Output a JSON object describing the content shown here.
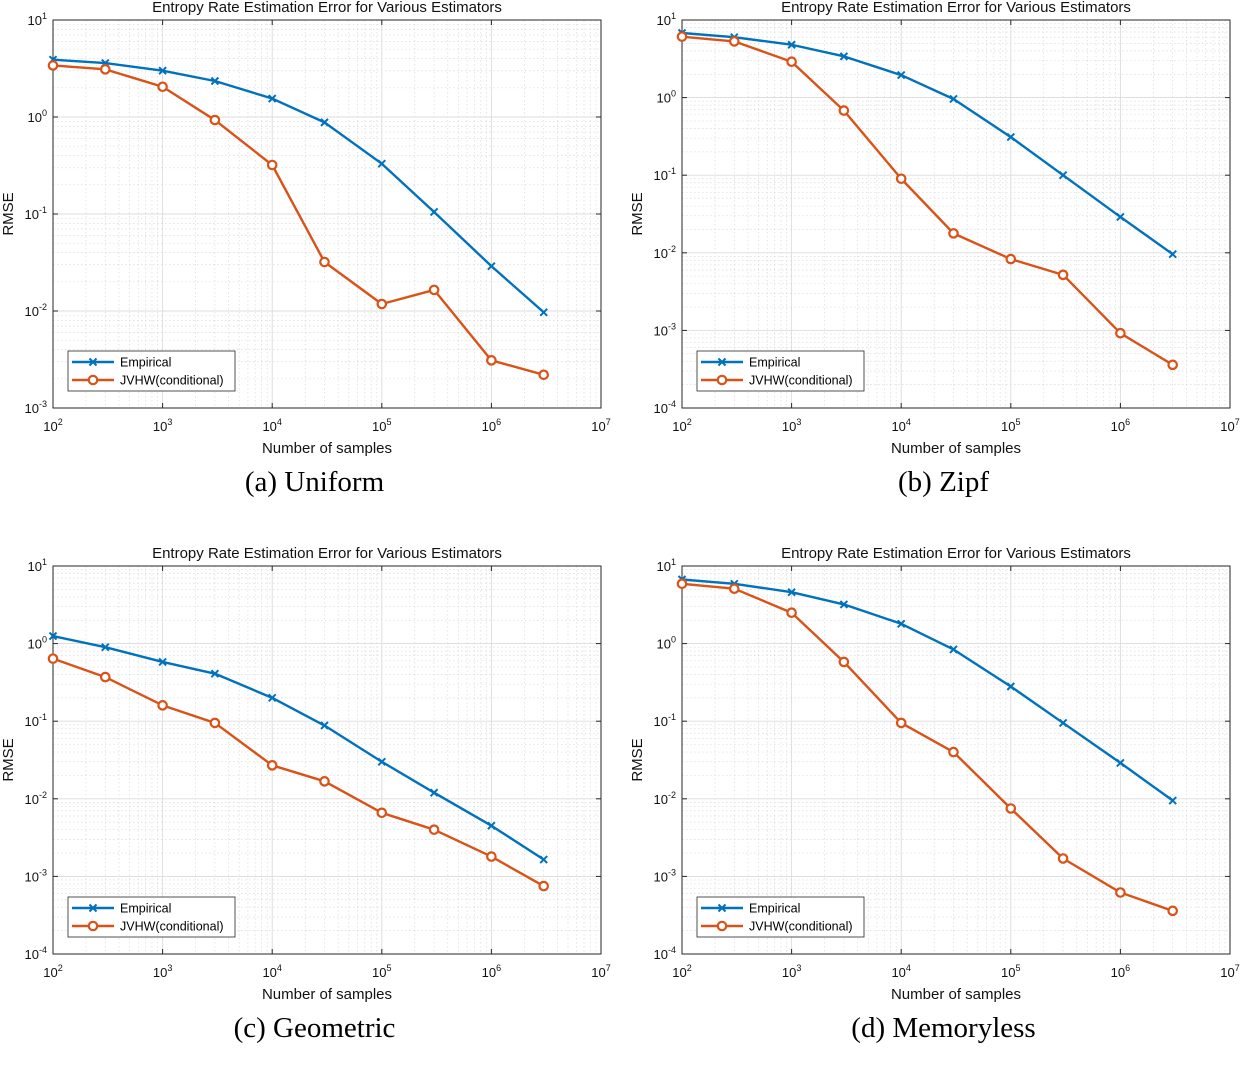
{
  "captions": [
    "(a)  Uniform",
    "(b)  Zipf",
    "(c)  Geometric",
    "(d)  Memoryless"
  ],
  "colors": {
    "empirical": "#0072BD",
    "jvhw": "#D95319"
  },
  "chart_data": [
    {
      "type": "line",
      "title": "Entropy Rate Estimation Error for Various Estimators",
      "xlabel": "Number of samples",
      "ylabel": "RMSE",
      "xscale": "log",
      "yscale": "log",
      "xlim": [
        100,
        10000000
      ],
      "ylim": [
        0.001,
        10
      ],
      "xticks": [
        "10^2",
        "10^3",
        "10^4",
        "10^5",
        "10^6",
        "10^7"
      ],
      "yticks": [
        "10^-3",
        "10^-2",
        "10^-1",
        "10^0",
        "10^1"
      ],
      "x": [
        100,
        300,
        1000,
        3000,
        10000,
        30000,
        100000,
        300000,
        1000000,
        3000000
      ],
      "series": [
        {
          "name": "Empirical",
          "marker": "x",
          "values": [
            3.9,
            3.6,
            3.0,
            2.35,
            1.55,
            0.88,
            0.33,
            0.105,
            0.029,
            0.0097
          ]
        },
        {
          "name": "JVHW(conditional)",
          "marker": "o",
          "values": [
            3.4,
            3.1,
            2.05,
            0.93,
            0.32,
            0.032,
            0.0118,
            0.0165,
            0.0031,
            0.0022
          ]
        }
      ],
      "legend": "bottom-left",
      "grid": true
    },
    {
      "type": "line",
      "title": "Entropy Rate Estimation Error for Various Estimators",
      "xlabel": "Number of samples",
      "ylabel": "RMSE",
      "xscale": "log",
      "yscale": "log",
      "xlim": [
        100,
        10000000
      ],
      "ylim": [
        0.0001,
        10
      ],
      "xticks": [
        "10^2",
        "10^3",
        "10^4",
        "10^5",
        "10^6",
        "10^7"
      ],
      "yticks": [
        "10^-4",
        "10^-3",
        "10^-2",
        "10^-1",
        "10^0",
        "10^1"
      ],
      "x": [
        100,
        300,
        1000,
        3000,
        10000,
        30000,
        100000,
        300000,
        1000000,
        3000000
      ],
      "series": [
        {
          "name": "Empirical",
          "marker": "x",
          "values": [
            6.8,
            6.0,
            4.8,
            3.4,
            1.95,
            0.96,
            0.31,
            0.1,
            0.029,
            0.0096
          ]
        },
        {
          "name": "JVHW(conditional)",
          "marker": "o",
          "values": [
            6.1,
            5.3,
            2.9,
            0.68,
            0.09,
            0.0178,
            0.0083,
            0.0052,
            0.00092,
            0.00036
          ]
        }
      ],
      "legend": "bottom-left",
      "grid": true
    },
    {
      "type": "line",
      "title": "Entropy Rate Estimation Error for Various Estimators",
      "xlabel": "Number of samples",
      "ylabel": "RMSE",
      "xscale": "log",
      "yscale": "log",
      "xlim": [
        100,
        10000000
      ],
      "ylim": [
        0.0001,
        10
      ],
      "xticks": [
        "10^2",
        "10^3",
        "10^4",
        "10^5",
        "10^6",
        "10^7"
      ],
      "yticks": [
        "10^-4",
        "10^-3",
        "10^-2",
        "10^-1",
        "10^0",
        "10^1"
      ],
      "x": [
        100,
        300,
        1000,
        3000,
        10000,
        30000,
        100000,
        300000,
        1000000,
        3000000
      ],
      "series": [
        {
          "name": "Empirical",
          "marker": "x",
          "values": [
            1.25,
            0.9,
            0.58,
            0.41,
            0.2,
            0.088,
            0.03,
            0.012,
            0.0045,
            0.00165
          ]
        },
        {
          "name": "JVHW(conditional)",
          "marker": "o",
          "values": [
            0.64,
            0.37,
            0.16,
            0.095,
            0.027,
            0.0168,
            0.0066,
            0.004,
            0.0018,
            0.00075
          ]
        }
      ],
      "legend": "bottom-left",
      "grid": true
    },
    {
      "type": "line",
      "title": "Entropy Rate Estimation Error for Various Estimators",
      "xlabel": "Number of samples",
      "ylabel": "RMSE",
      "xscale": "log",
      "yscale": "log",
      "xlim": [
        100,
        10000000
      ],
      "ylim": [
        0.0001,
        10
      ],
      "xticks": [
        "10^2",
        "10^3",
        "10^4",
        "10^5",
        "10^6",
        "10^7"
      ],
      "yticks": [
        "10^-4",
        "10^-3",
        "10^-2",
        "10^-1",
        "10^0",
        "10^1"
      ],
      "x": [
        100,
        300,
        1000,
        3000,
        10000,
        30000,
        100000,
        300000,
        1000000,
        3000000
      ],
      "series": [
        {
          "name": "Empirical",
          "marker": "x",
          "values": [
            6.7,
            5.9,
            4.6,
            3.2,
            1.8,
            0.84,
            0.28,
            0.095,
            0.029,
            0.0095
          ]
        },
        {
          "name": "JVHW(conditional)",
          "marker": "o",
          "values": [
            5.9,
            5.1,
            2.5,
            0.58,
            0.095,
            0.04,
            0.0075,
            0.0017,
            0.00062,
            0.00036
          ]
        }
      ],
      "legend": "bottom-left",
      "grid": true
    }
  ]
}
